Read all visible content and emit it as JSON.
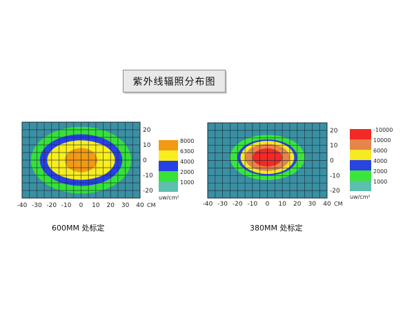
{
  "page": {
    "title": "紫外线辐照分布图"
  },
  "chart_data": [
    {
      "type": "heatmap",
      "caption": "600MM 处标定",
      "x_ticks": [
        -40,
        -30,
        -20,
        -10,
        0,
        10,
        20,
        30,
        40
      ],
      "x_unit": "CM",
      "y_ticks": [
        20,
        10,
        0,
        -10,
        -20
      ],
      "legend_unit": "uw/cm²",
      "background_color": "#3a90a3",
      "levels": [
        {
          "label": "8000",
          "color": "#f29a14",
          "rx": 11,
          "ry": 8
        },
        {
          "label": "6300",
          "color": "#f8ee1e",
          "rx": 23,
          "ry": 13
        },
        {
          "label": "4000",
          "color": "#2740e8",
          "rx": 28,
          "ry": 17
        },
        {
          "label": "2000",
          "color": "#36e13a",
          "rx": 34,
          "ry": 22
        },
        {
          "label": "1000",
          "color": "#5dbfae",
          "rx": null,
          "ry": null
        }
      ]
    },
    {
      "type": "heatmap",
      "caption": "380MM 处标定",
      "x_ticks": [
        -40,
        -30,
        -20,
        -10,
        0,
        10,
        20,
        30,
        40
      ],
      "x_unit": "CM",
      "y_ticks": [
        20,
        10,
        0,
        -10,
        -20
      ],
      "legend_unit": "uw/cm²",
      "background_color": "#3a90a3",
      "levels": [
        {
          "label": "-10000",
          "color": "#f22a25",
          "rx": 10,
          "ry": 6
        },
        {
          "label": "10000",
          "color": "#e6854a",
          "rx": 15,
          "ry": 9
        },
        {
          "label": "6000",
          "color": "#f6ea23",
          "rx": 18,
          "ry": 11
        },
        {
          "label": "4000",
          "color": "#2a44e0",
          "rx": 20,
          "ry": 12
        },
        {
          "label": "2000",
          "color": "#3ae53c",
          "rx": 25,
          "ry": 15
        },
        {
          "label": "1000",
          "color": "#5cc0ad",
          "rx": null,
          "ry": null
        }
      ]
    }
  ]
}
